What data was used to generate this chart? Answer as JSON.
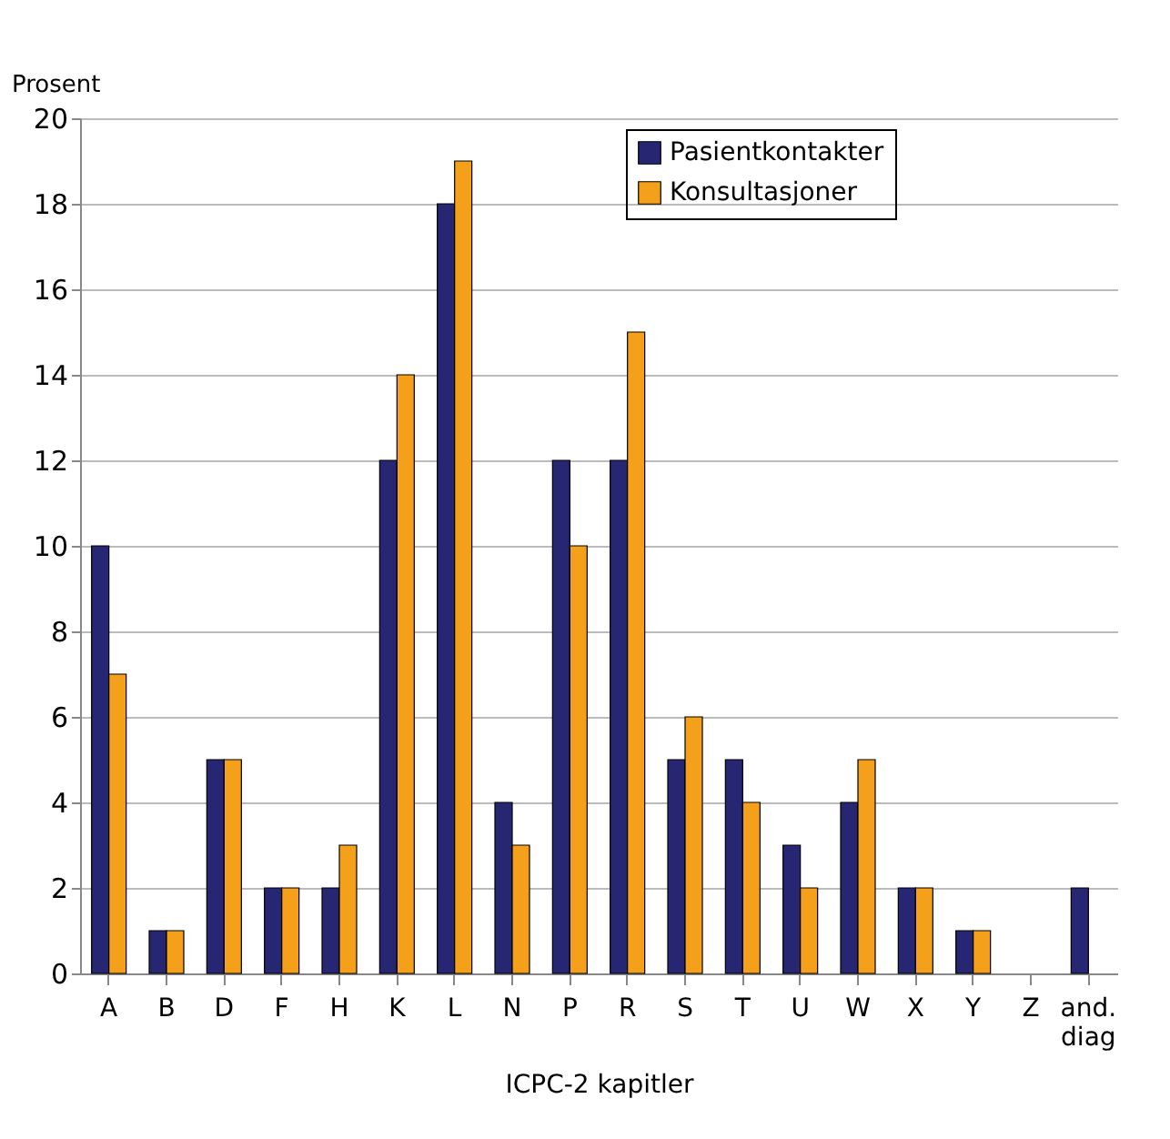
{
  "chart_data": {
    "type": "bar",
    "xlabel": "ICPC-2 kapitler",
    "ylabel": "Prosent",
    "categories": [
      "A",
      "B",
      "D",
      "F",
      "H",
      "K",
      "L",
      "N",
      "P",
      "R",
      "S",
      "T",
      "U",
      "W",
      "X",
      "Y",
      "Z",
      "and. diag"
    ],
    "series": [
      {
        "name": "Pasientkontakter",
        "color": "#262673",
        "values": [
          10,
          1,
          5,
          2,
          2,
          12,
          18,
          4,
          12,
          12,
          5,
          5,
          3,
          4,
          2,
          1,
          null,
          2
        ]
      },
      {
        "name": "Konsultasjoner",
        "color": "#f5a01a",
        "values": [
          7,
          1,
          5,
          2,
          3,
          14,
          19,
          3,
          10,
          15,
          6,
          4,
          2,
          5,
          2,
          1,
          null,
          null
        ]
      }
    ],
    "ylim": [
      0,
      20
    ],
    "yticks": [
      0,
      2,
      4,
      6,
      8,
      10,
      12,
      14,
      16,
      18,
      20
    ],
    "grid": "y",
    "legend": "top right"
  }
}
